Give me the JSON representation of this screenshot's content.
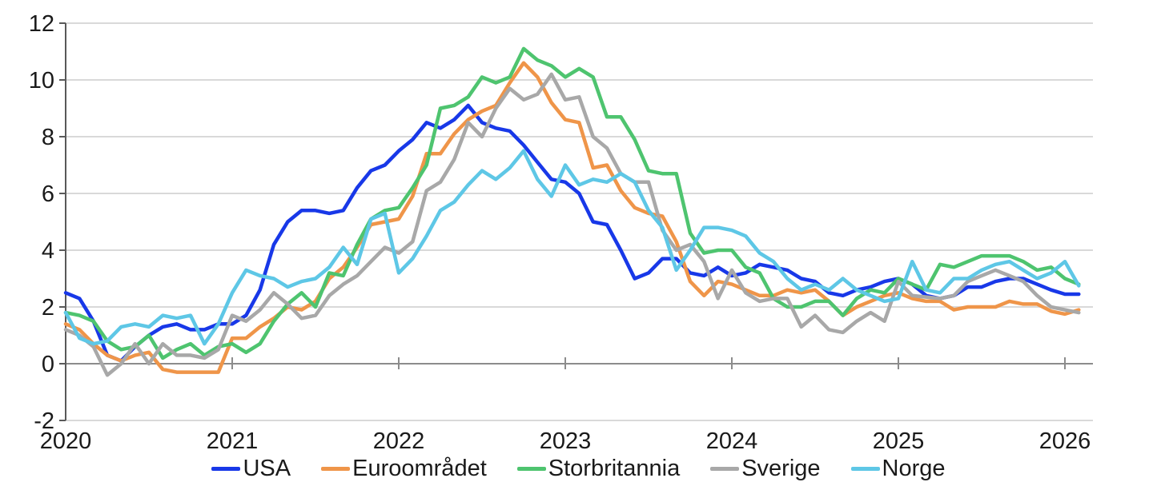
{
  "chart_data": {
    "type": "line",
    "title": "",
    "xlabel": "",
    "ylabel": "",
    "x_unit": "month",
    "x_start": "2020-01",
    "x_end": "2026-02",
    "ylim": [
      -2,
      12
    ],
    "y_tick_step": 2,
    "y_tick_labels": [
      "-2",
      "0",
      "2",
      "4",
      "6",
      "8",
      "10",
      "12"
    ],
    "x_tick_labels": [
      "2020",
      "2021",
      "2022",
      "2023",
      "2024",
      "2025",
      "2026"
    ],
    "grid": true,
    "legend_position": "bottom",
    "grid_color": "#D9D9D9",
    "zero_axis_color": "#8C8C8C",
    "y_axis_color": "#595959",
    "label_color": "#1a1a1a",
    "series": [
      {
        "name": "USA",
        "color": "#1838E8",
        "values": [
          2.5,
          2.3,
          1.5,
          0.3,
          0.1,
          0.6,
          1.0,
          1.3,
          1.4,
          1.2,
          1.2,
          1.4,
          1.4,
          1.7,
          2.6,
          4.2,
          5.0,
          5.4,
          5.4,
          5.3,
          5.4,
          6.2,
          6.8,
          7.0,
          7.5,
          7.9,
          8.5,
          8.3,
          8.6,
          9.1,
          8.5,
          8.3,
          8.2,
          7.7,
          7.1,
          6.5,
          6.4,
          6.0,
          5.0,
          4.9,
          4.0,
          3.0,
          3.2,
          3.7,
          3.7,
          3.2,
          3.1,
          3.4,
          3.1,
          3.2,
          3.5,
          3.4,
          3.3,
          3.0,
          2.9,
          2.5,
          2.4,
          2.6,
          2.7,
          2.9,
          3.0,
          2.8,
          2.4,
          2.3,
          2.4,
          2.7,
          2.7,
          2.9,
          3.0,
          3.0,
          2.8,
          2.6,
          2.45,
          2.45
        ]
      },
      {
        "name": "Euroområdet",
        "color": "#EF9549",
        "values": [
          1.4,
          1.2,
          0.7,
          0.3,
          0.1,
          0.3,
          0.4,
          -0.2,
          -0.3,
          -0.3,
          -0.3,
          -0.3,
          0.9,
          0.9,
          1.3,
          1.6,
          2.0,
          1.9,
          2.2,
          3.0,
          3.4,
          4.1,
          4.9,
          5.0,
          5.1,
          5.9,
          7.4,
          7.4,
          8.1,
          8.6,
          8.9,
          9.1,
          9.9,
          10.6,
          10.1,
          9.2,
          8.6,
          8.5,
          6.9,
          7.0,
          6.1,
          5.5,
          5.3,
          5.2,
          4.3,
          2.9,
          2.4,
          2.9,
          2.8,
          2.6,
          2.4,
          2.4,
          2.6,
          2.5,
          2.6,
          2.2,
          1.7,
          2.0,
          2.2,
          2.4,
          2.5,
          2.3,
          2.2,
          2.2,
          1.9,
          2.0,
          2.0,
          2.0,
          2.2,
          2.1,
          2.1,
          1.85,
          1.75,
          1.9
        ]
      },
      {
        "name": "Storbritannia",
        "color": "#4EC46F",
        "values": [
          1.8,
          1.7,
          1.5,
          0.8,
          0.5,
          0.6,
          1.0,
          0.2,
          0.5,
          0.7,
          0.3,
          0.6,
          0.7,
          0.4,
          0.7,
          1.5,
          2.1,
          2.5,
          2.0,
          3.2,
          3.1,
          4.2,
          5.1,
          5.4,
          5.5,
          6.2,
          7.0,
          9.0,
          9.1,
          9.4,
          10.1,
          9.9,
          10.1,
          11.1,
          10.7,
          10.5,
          10.1,
          10.4,
          10.1,
          8.7,
          8.7,
          7.9,
          6.8,
          6.7,
          6.7,
          4.6,
          3.9,
          4.0,
          4.0,
          3.4,
          3.2,
          2.3,
          2.0,
          2.0,
          2.2,
          2.2,
          1.7,
          2.3,
          2.6,
          2.5,
          3.0,
          2.8,
          2.6,
          3.5,
          3.4,
          3.6,
          3.8,
          3.8,
          3.8,
          3.6,
          3.3,
          3.4,
          3.0,
          2.8
        ]
      },
      {
        "name": "Sverige",
        "color": "#A8A8A8",
        "values": [
          1.2,
          1.0,
          0.6,
          -0.4,
          0.0,
          0.7,
          0.0,
          0.7,
          0.3,
          0.3,
          0.2,
          0.5,
          1.7,
          1.5,
          1.9,
          2.5,
          2.1,
          1.6,
          1.7,
          2.4,
          2.8,
          3.1,
          3.6,
          4.1,
          3.9,
          4.3,
          6.1,
          6.4,
          7.2,
          8.5,
          8.0,
          9.0,
          9.7,
          9.3,
          9.5,
          10.2,
          9.3,
          9.4,
          8.0,
          7.6,
          6.7,
          6.4,
          6.4,
          4.7,
          4.0,
          4.2,
          3.6,
          2.3,
          3.3,
          2.5,
          2.2,
          2.3,
          2.3,
          1.3,
          1.7,
          1.2,
          1.1,
          1.5,
          1.8,
          1.5,
          2.9,
          2.4,
          2.35,
          2.3,
          2.4,
          2.9,
          3.1,
          3.3,
          3.1,
          2.9,
          2.4,
          2.0,
          1.9,
          1.8
        ]
      },
      {
        "name": "Norge",
        "color": "#5EC7E6",
        "values": [
          1.8,
          0.9,
          0.7,
          0.8,
          1.3,
          1.4,
          1.3,
          1.7,
          1.6,
          1.7,
          0.7,
          1.4,
          2.5,
          3.3,
          3.1,
          3.0,
          2.7,
          2.9,
          3.0,
          3.4,
          4.1,
          3.5,
          5.1,
          5.3,
          3.2,
          3.7,
          4.5,
          5.4,
          5.7,
          6.3,
          6.8,
          6.5,
          6.9,
          7.5,
          6.5,
          5.9,
          7.0,
          6.3,
          6.5,
          6.4,
          6.7,
          6.4,
          5.4,
          4.8,
          3.3,
          4.0,
          4.8,
          4.8,
          4.7,
          4.5,
          3.9,
          3.6,
          3.0,
          2.6,
          2.8,
          2.6,
          3.0,
          2.6,
          2.4,
          2.2,
          2.3,
          3.6,
          2.6,
          2.5,
          3.0,
          3.0,
          3.3,
          3.5,
          3.6,
          3.3,
          3.0,
          3.2,
          3.6,
          2.75
        ]
      }
    ]
  }
}
